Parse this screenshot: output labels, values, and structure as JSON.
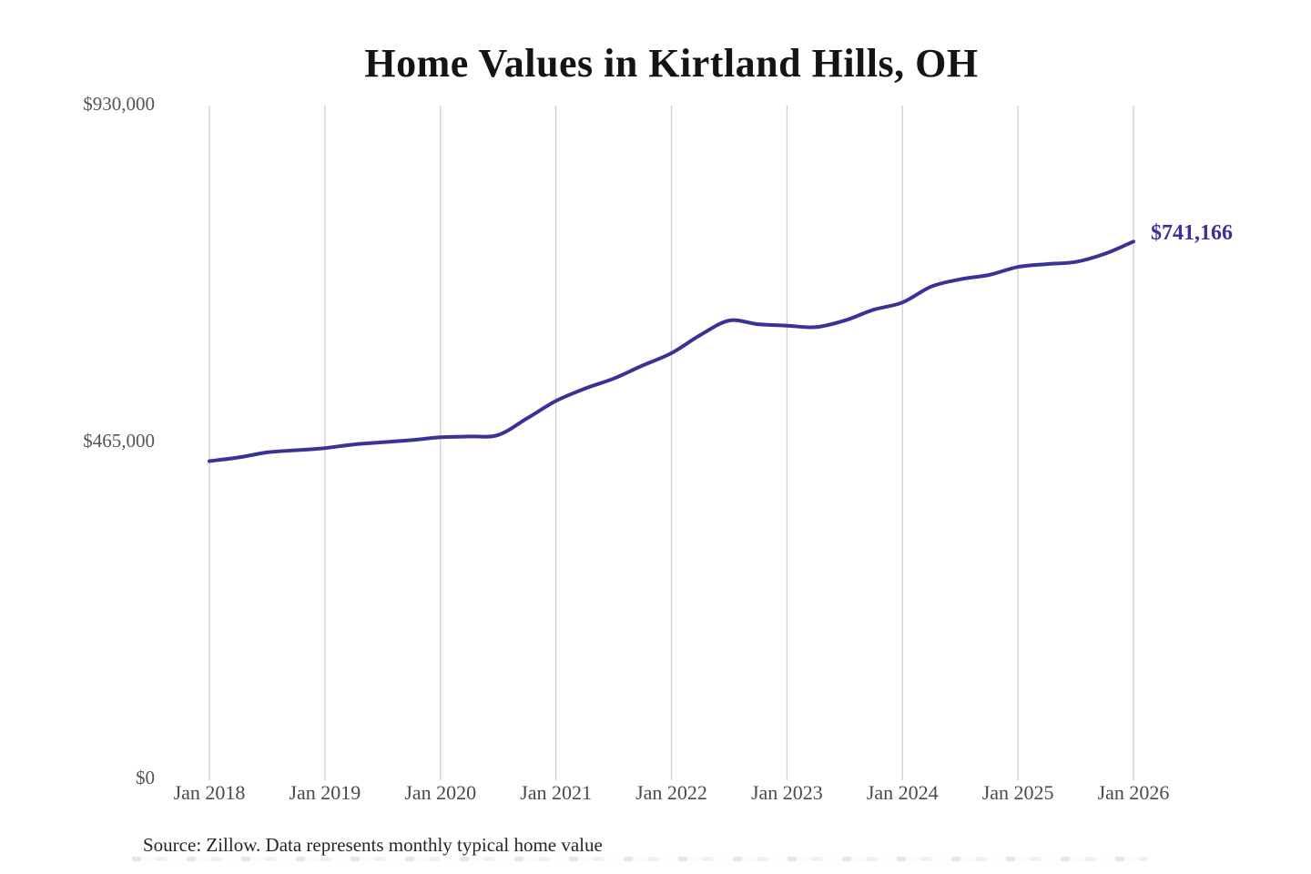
{
  "chart": {
    "title": "Home Values in Kirtland Hills, OH",
    "end_label": "$741,166",
    "source": "Source: Zillow. Data represents monthly typical home value",
    "accent_color": "#3a3397",
    "gridline_color": "#cccccc",
    "title_color": "#141414",
    "tick_label_color": "#4a4a4a"
  },
  "chart_data": {
    "type": "line",
    "title": "Home Values in Kirtland Hills, OH",
    "series_label": "Monthly typical home value",
    "x": [
      "2018-01",
      "2018-04",
      "2018-07",
      "2018-10",
      "2019-01",
      "2019-04",
      "2019-07",
      "2019-10",
      "2020-01",
      "2020-04",
      "2020-07",
      "2020-10",
      "2021-01",
      "2021-04",
      "2021-07",
      "2021-10",
      "2022-01",
      "2022-04",
      "2022-07",
      "2022-10",
      "2023-01",
      "2023-04",
      "2023-07",
      "2023-10",
      "2024-01",
      "2024-04",
      "2024-07",
      "2024-10",
      "2025-01",
      "2025-04",
      "2025-07",
      "2025-10",
      "2026-01"
    ],
    "values": [
      438000,
      443000,
      450000,
      453000,
      456000,
      461000,
      464000,
      467000,
      471000,
      472000,
      474000,
      497000,
      521000,
      538000,
      552000,
      570000,
      587000,
      612000,
      632000,
      627000,
      625000,
      623000,
      632000,
      647000,
      657000,
      679000,
      689000,
      695000,
      706000,
      710000,
      713000,
      724000,
      741166
    ],
    "x_tick_labels": [
      "Jan 2018",
      "Jan 2019",
      "Jan 2020",
      "Jan 2021",
      "Jan 2022",
      "Jan 2023",
      "Jan 2024",
      "Jan 2025",
      "Jan 2026"
    ],
    "y_ticks": [
      {
        "label": "$0",
        "value": 0
      },
      {
        "label": "$465,000",
        "value": 465000
      },
      {
        "label": "$930,000",
        "value": 930000
      }
    ],
    "ylim": [
      0,
      930000
    ],
    "final_value_label": "$741,166",
    "line_color": "#3a3397",
    "grid": "vertical-only",
    "legend": "none",
    "source": "Source: Zillow. Data represents monthly typical home value"
  }
}
